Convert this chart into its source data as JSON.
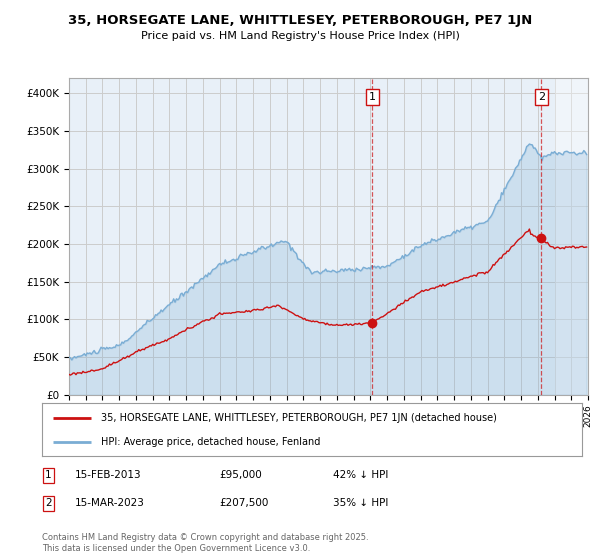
{
  "title": "35, HORSEGATE LANE, WHITTLESEY, PETERBOROUGH, PE7 1JN",
  "subtitle": "Price paid vs. HM Land Registry's House Price Index (HPI)",
  "xlim_start": 1995.0,
  "xlim_end": 2026.0,
  "ylim_min": 0,
  "ylim_max": 420000,
  "yticks": [
    0,
    50000,
    100000,
    150000,
    200000,
    250000,
    300000,
    350000,
    400000
  ],
  "ytick_labels": [
    "£0",
    "£50K",
    "£100K",
    "£150K",
    "£200K",
    "£250K",
    "£300K",
    "£350K",
    "£400K"
  ],
  "sale1_year": 2013.12,
  "sale1_price": 95000,
  "sale2_year": 2023.21,
  "sale2_price": 207500,
  "hpi_color": "#7aadd4",
  "hpi_fill_color": "#ddeeff",
  "price_color": "#cc1111",
  "vline_color": "#cc1111",
  "grid_color": "#cccccc",
  "background_color": "#e8f0f8",
  "legend_label_price": "35, HORSEGATE LANE, WHITTLESEY, PETERBOROUGH, PE7 1JN (detached house)",
  "legend_label_hpi": "HPI: Average price, detached house, Fenland",
  "footnote": "Contains HM Land Registry data © Crown copyright and database right 2025.\nThis data is licensed under the Open Government Licence v3.0."
}
